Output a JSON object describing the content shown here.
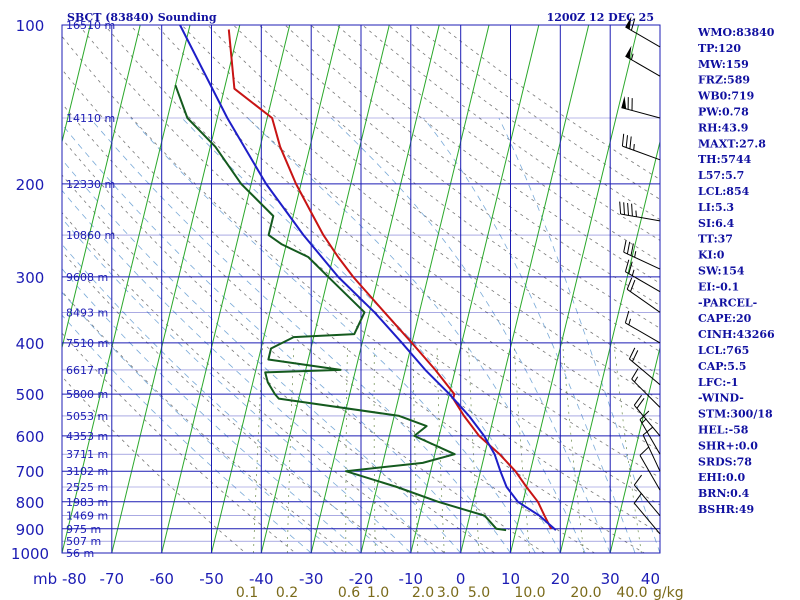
{
  "header": {
    "station_title": "SBCT (83840) Sounding",
    "valid_time": "1200Z 12 DEC 25"
  },
  "colors": {
    "grid": "#1c1cb4",
    "isotherm": "#2aa82a",
    "dry_adiabat": "#7a7a7a",
    "moist_adiabat": "#7aaad8",
    "mixing_ratio": "#6a8a4a",
    "temperature": "#c81414",
    "dewpoint": "#145a1e",
    "parcel": "#1e1ec8",
    "axis_text": "#1c1cb4",
    "mixing_text": "#7a6a1a",
    "indices_text": "#1010a0"
  },
  "chart_data": {
    "type": "line",
    "chart_kind": "skew-T log-p sounding",
    "y_scale": "log",
    "ylim": [
      1000,
      100
    ],
    "xlim": [
      -80,
      40
    ],
    "x_ticks": [
      -80,
      -70,
      -60,
      -50,
      -40,
      -30,
      -20,
      -10,
      0,
      10,
      20,
      30,
      40
    ],
    "x_axis_corner_label": "mb",
    "pressure_ticks": [
      100,
      200,
      300,
      400,
      500,
      600,
      700,
      800,
      900,
      1000
    ],
    "height_labels": [
      {
        "p": 100,
        "label": "16510 m"
      },
      {
        "p": 150,
        "label": "14110 m"
      },
      {
        "p": 200,
        "label": "12330 m"
      },
      {
        "p": 250,
        "label": "10860 m"
      },
      {
        "p": 300,
        "label": "9608 m"
      },
      {
        "p": 350,
        "label": "8493 m"
      },
      {
        "p": 400,
        "label": "7510 m"
      },
      {
        "p": 450,
        "label": "6617 m"
      },
      {
        "p": 500,
        "label": "5800 m"
      },
      {
        "p": 550,
        "label": "5053 m"
      },
      {
        "p": 600,
        "label": "4353 m"
      },
      {
        "p": 650,
        "label": "3711 m"
      },
      {
        "p": 700,
        "label": "3102 m"
      },
      {
        "p": 750,
        "label": "2525 m"
      },
      {
        "p": 800,
        "label": "1983 m"
      },
      {
        "p": 850,
        "label": "1469 m"
      },
      {
        "p": 900,
        "label": "975 m"
      },
      {
        "p": 950,
        "label": "507 m"
      },
      {
        "p": 1000,
        "label": "56 m"
      }
    ],
    "mixing_ratio_labels": [
      "0.1",
      "0.2",
      "0.6",
      "1.0",
      "2.0",
      "3.0",
      "5.0",
      "10.0",
      "20.0",
      "40.0"
    ],
    "mixing_ratio_values": [
      0.1,
      0.2,
      0.6,
      1.0,
      2.0,
      3.0,
      5.0,
      10.0,
      20.0,
      40.0
    ],
    "mixing_ratio_unit": "g/kg",
    "series": [
      {
        "key": "temperature",
        "points": [
          [
            102,
            -72
          ],
          [
            132,
            -68
          ],
          [
            150,
            -59
          ],
          [
            170,
            -56
          ],
          [
            200,
            -51
          ],
          [
            230,
            -46
          ],
          [
            250,
            -43
          ],
          [
            275,
            -39
          ],
          [
            300,
            -35
          ],
          [
            350,
            -27
          ],
          [
            400,
            -20
          ],
          [
            450,
            -14
          ],
          [
            500,
            -9
          ],
          [
            510,
            -9
          ],
          [
            550,
            -6
          ],
          [
            600,
            -2
          ],
          [
            650,
            3
          ],
          [
            700,
            7
          ],
          [
            750,
            10
          ],
          [
            800,
            13
          ],
          [
            850,
            15
          ],
          [
            900,
            17
          ]
        ]
      },
      {
        "key": "dewpoint",
        "points": [
          [
            130,
            -80
          ],
          [
            150,
            -76
          ],
          [
            170,
            -69
          ],
          [
            200,
            -62
          ],
          [
            230,
            -54
          ],
          [
            250,
            -54
          ],
          [
            260,
            -51
          ],
          [
            275,
            -45
          ],
          [
            300,
            -40
          ],
          [
            350,
            -31
          ],
          [
            385,
            -32
          ],
          [
            390,
            -44
          ],
          [
            410,
            -48
          ],
          [
            430,
            -48
          ],
          [
            450,
            -33
          ],
          [
            455,
            -48
          ],
          [
            475,
            -47
          ],
          [
            500,
            -45
          ],
          [
            510,
            -44
          ],
          [
            550,
            -19
          ],
          [
            575,
            -13
          ],
          [
            600,
            -15
          ],
          [
            650,
            -6
          ],
          [
            675,
            -12
          ],
          [
            700,
            -27
          ],
          [
            750,
            -16
          ],
          [
            800,
            -7
          ],
          [
            850,
            3
          ],
          [
            900,
            6
          ],
          [
            905,
            8
          ]
        ]
      },
      {
        "key": "parcel",
        "points": [
          [
            100,
            -82
          ],
          [
            150,
            -68
          ],
          [
            200,
            -57
          ],
          [
            250,
            -47
          ],
          [
            300,
            -38
          ],
          [
            350,
            -29
          ],
          [
            400,
            -22
          ],
          [
            450,
            -16
          ],
          [
            500,
            -10
          ],
          [
            550,
            -5
          ],
          [
            600,
            -1
          ],
          [
            650,
            2
          ],
          [
            700,
            4
          ],
          [
            750,
            6
          ],
          [
            800,
            9
          ],
          [
            850,
            14
          ],
          [
            905,
            18
          ]
        ]
      }
    ],
    "wind_barbs": [
      {
        "p": 110,
        "dir": 300,
        "spd": 60
      },
      {
        "p": 125,
        "dir": 300,
        "spd": 55
      },
      {
        "p": 150,
        "dir": 285,
        "spd": 70
      },
      {
        "p": 180,
        "dir": 290,
        "spd": 35
      },
      {
        "p": 235,
        "dir": 280,
        "spd": 45
      },
      {
        "p": 290,
        "dir": 295,
        "spd": 35
      },
      {
        "p": 320,
        "dir": 300,
        "spd": 25
      },
      {
        "p": 350,
        "dir": 305,
        "spd": 20
      },
      {
        "p": 400,
        "dir": 300,
        "spd": 15
      },
      {
        "p": 480,
        "dir": 310,
        "spd": 20
      },
      {
        "p": 530,
        "dir": 315,
        "spd": 15
      },
      {
        "p": 600,
        "dir": 320,
        "spd": 20
      },
      {
        "p": 650,
        "dir": 330,
        "spd": 15
      },
      {
        "p": 700,
        "dir": 335,
        "spd": 10
      },
      {
        "p": 760,
        "dir": 330,
        "spd": 10
      },
      {
        "p": 850,
        "dir": 320,
        "spd": 10
      },
      {
        "p": 920,
        "dir": 320,
        "spd": 10
      }
    ]
  },
  "indices": [
    "WMO:83840",
    "TP:120",
    "MW:159",
    "FRZ:589",
    "WB0:719",
    "PW:0.78",
    "RH:43.9",
    "MAXT:27.8",
    "TH:5744",
    "L57:5.7",
    "LCL:854",
    "LI:5.3",
    "SI:6.4",
    "TT:37",
    "KI:0",
    "SW:154",
    "EI:-0.1",
    "-PARCEL-",
    "CAPE:20",
    "CINH:43266",
    "LCL:765",
    "CAP:5.5",
    "LFC:-1",
    "-WIND-",
    "STM:300/18",
    "HEL:-58",
    "SHR+:0.0",
    "SRDS:78",
    "EHI:0.0",
    "BRN:0.4",
    "BSHR:49"
  ]
}
